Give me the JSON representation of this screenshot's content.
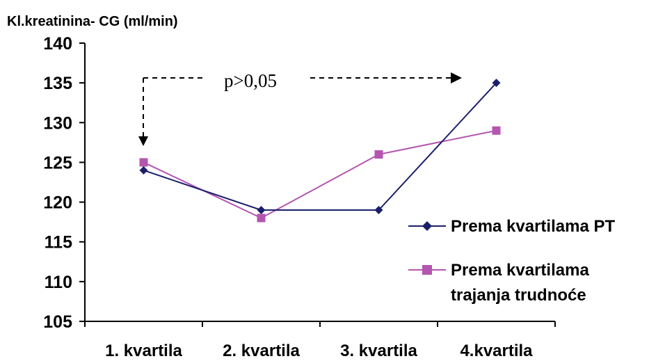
{
  "chart_data": {
    "type": "line",
    "ylabel": "Kl.kreatinina- CG (ml/min)",
    "xlabel": "",
    "categories": [
      "1. kvartila",
      "2. kvartila",
      "3. kvartila",
      "4.kvartila"
    ],
    "ylim": [
      105,
      140
    ],
    "yticks": [
      105,
      110,
      115,
      120,
      125,
      130,
      135,
      140
    ],
    "grid": false,
    "legend_position": "right",
    "series": [
      {
        "name": "Prema kvartilama PT",
        "values": [
          124,
          119,
          119,
          135
        ],
        "color": "#1b1f6b",
        "marker": "diamond"
      },
      {
        "name": "Prema kvartilama trajanja trudnoće",
        "legend_lines": [
          "Prema kvartilama",
          "trajanja trudnoće"
        ],
        "values": [
          125,
          118,
          126,
          129
        ],
        "color": "#b455b0",
        "marker": "square"
      }
    ],
    "annotation": {
      "text": "p>0,05",
      "style": "dashed arrow from 1. kvartila to 4.kvartila"
    }
  }
}
